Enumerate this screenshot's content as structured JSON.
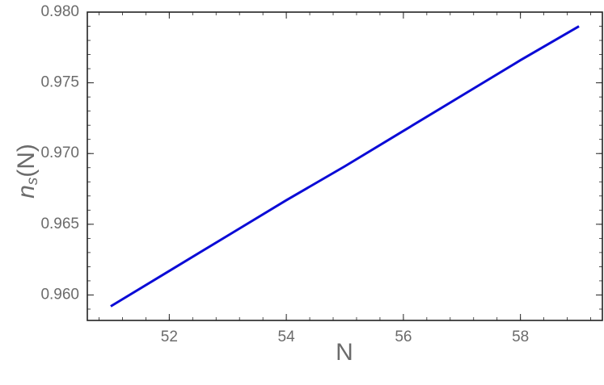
{
  "chart_data": {
    "type": "line",
    "xlabel": "N",
    "ylabel": {
      "base": "n",
      "subscript": "s",
      "suffix": "(N)"
    },
    "xlim": [
      50.6,
      59.4
    ],
    "ylim": [
      0.9582,
      0.98
    ],
    "x_ticks": [
      {
        "value": 52,
        "label": "52"
      },
      {
        "value": 54,
        "label": "54"
      },
      {
        "value": 56,
        "label": "56"
      },
      {
        "value": 58,
        "label": "58"
      }
    ],
    "y_ticks": [
      {
        "value": 0.96,
        "label": "0.960"
      },
      {
        "value": 0.965,
        "label": "0.965"
      },
      {
        "value": 0.97,
        "label": "0.970"
      },
      {
        "value": 0.975,
        "label": "0.975"
      },
      {
        "value": 0.98,
        "label": "0.980"
      }
    ],
    "series": [
      {
        "color": "#0b0bd6",
        "x": [
          51,
          52,
          53,
          54,
          55,
          56,
          57,
          58,
          59
        ],
        "y": [
          0.9592,
          0.9617,
          0.9642,
          0.9667,
          0.9691,
          0.9716,
          0.9741,
          0.9766,
          0.979
        ]
      }
    ],
    "grid": false,
    "frame": true
  }
}
